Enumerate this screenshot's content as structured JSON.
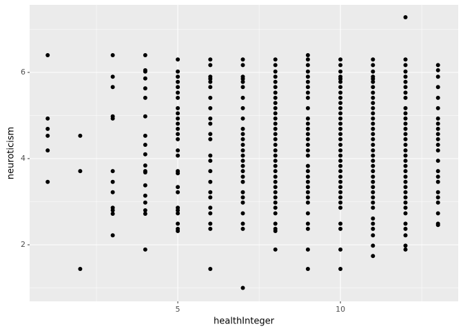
{
  "chart_data": {
    "type": "scatter",
    "x_label": "healthInteger",
    "y_label": "neuroticism",
    "xlim": [
      0.445,
      13.62
    ],
    "ylim": [
      0.688,
      7.568
    ],
    "xticks": [
      5,
      10
    ],
    "yticks": [
      2,
      4,
      6
    ],
    "grid": true,
    "color": "#000000",
    "points": [
      {
        "x": 1,
        "y": [
          6.4,
          4.93,
          4.69,
          4.53,
          4.19,
          3.46
        ]
      },
      {
        "x": 2,
        "y": [
          4.53,
          3.71,
          1.44
        ]
      },
      {
        "x": 3,
        "y": [
          6.4,
          5.9,
          5.66,
          4.98,
          4.93,
          3.71,
          3.46,
          3.22,
          2.86,
          2.8,
          2.72,
          2.22
        ]
      },
      {
        "x": 4,
        "y": [
          6.4,
          6.05,
          6.02,
          5.86,
          5.63,
          5.41,
          4.98,
          4.53,
          4.32,
          4.1,
          3.84,
          3.71,
          3.68,
          3.38,
          3.14,
          2.98,
          2.8,
          2.72,
          1.89
        ]
      },
      {
        "x": 5,
        "y": [
          6.3,
          6.02,
          5.9,
          5.78,
          5.66,
          5.53,
          5.41,
          5.17,
          5.05,
          4.93,
          4.81,
          4.69,
          4.57,
          4.45,
          4.19,
          4.07,
          3.71,
          3.66,
          3.34,
          3.22,
          2.86,
          2.8,
          2.73,
          2.49,
          2.37,
          2.32
        ]
      },
      {
        "x": 6,
        "y": [
          6.3,
          6.17,
          5.9,
          5.85,
          5.78,
          5.66,
          5.41,
          5.17,
          4.93,
          4.81,
          4.57,
          4.45,
          4.07,
          3.95,
          3.71,
          3.46,
          3.22,
          3.1,
          2.86,
          2.73,
          2.49,
          2.37,
          1.44
        ]
      },
      {
        "x": 7,
        "y": [
          6.3,
          6.17,
          5.9,
          5.85,
          5.78,
          5.66,
          5.41,
          5.17,
          4.93,
          4.69,
          4.57,
          4.45,
          4.32,
          4.19,
          4.07,
          3.95,
          3.83,
          3.71,
          3.58,
          3.46,
          3.22,
          3.1,
          2.98,
          2.73,
          2.49,
          2.37,
          1.0
        ]
      },
      {
        "x": 8,
        "y": [
          6.3,
          6.17,
          6.02,
          5.9,
          5.78,
          5.66,
          5.53,
          5.41,
          5.29,
          5.17,
          5.05,
          4.93,
          4.81,
          4.69,
          4.57,
          4.45,
          4.32,
          4.19,
          4.07,
          3.95,
          3.83,
          3.71,
          3.58,
          3.46,
          3.34,
          3.22,
          3.1,
          2.98,
          2.86,
          2.73,
          2.49,
          2.37,
          2.32,
          1.89
        ]
      },
      {
        "x": 9,
        "y": [
          6.4,
          6.3,
          6.17,
          6.02,
          5.9,
          5.78,
          5.66,
          5.53,
          5.41,
          5.17,
          4.93,
          4.81,
          4.69,
          4.57,
          4.45,
          4.32,
          4.19,
          4.07,
          3.83,
          3.71,
          3.58,
          3.46,
          3.34,
          3.22,
          3.1,
          2.98,
          2.73,
          2.49,
          2.37,
          1.89,
          1.44
        ]
      },
      {
        "x": 10,
        "y": [
          6.3,
          6.17,
          6.02,
          5.9,
          5.85,
          5.78,
          5.66,
          5.53,
          5.41,
          5.29,
          5.17,
          5.05,
          4.93,
          4.81,
          4.69,
          4.57,
          4.45,
          4.32,
          4.19,
          4.07,
          3.95,
          3.83,
          3.71,
          3.58,
          3.46,
          3.34,
          3.22,
          3.1,
          2.98,
          2.86,
          2.49,
          2.37,
          1.89,
          1.44
        ]
      },
      {
        "x": 11,
        "y": [
          6.3,
          6.17,
          6.02,
          5.9,
          5.85,
          5.78,
          5.66,
          5.53,
          5.41,
          5.29,
          5.17,
          5.05,
          4.93,
          4.81,
          4.69,
          4.57,
          4.45,
          4.32,
          4.19,
          4.07,
          3.95,
          3.83,
          3.71,
          3.58,
          3.46,
          3.34,
          3.22,
          3.1,
          2.98,
          2.86,
          2.61,
          2.49,
          2.37,
          2.22,
          1.98,
          1.74
        ]
      },
      {
        "x": 12,
        "y": [
          7.28,
          6.3,
          6.17,
          6.02,
          5.9,
          5.78,
          5.66,
          5.53,
          5.41,
          5.17,
          5.05,
          4.93,
          4.81,
          4.69,
          4.57,
          4.45,
          4.32,
          4.19,
          4.07,
          3.95,
          3.83,
          3.71,
          3.58,
          3.46,
          3.34,
          3.22,
          3.1,
          2.98,
          2.86,
          2.73,
          2.49,
          2.37,
          2.22,
          1.98,
          1.89
        ]
      },
      {
        "x": 13,
        "y": [
          6.17,
          6.05,
          5.9,
          5.66,
          5.41,
          5.17,
          4.93,
          4.81,
          4.69,
          4.57,
          4.45,
          4.32,
          4.19,
          3.95,
          3.71,
          3.58,
          3.46,
          3.22,
          3.1,
          2.98,
          2.73,
          2.49,
          2.46
        ]
      }
    ]
  }
}
